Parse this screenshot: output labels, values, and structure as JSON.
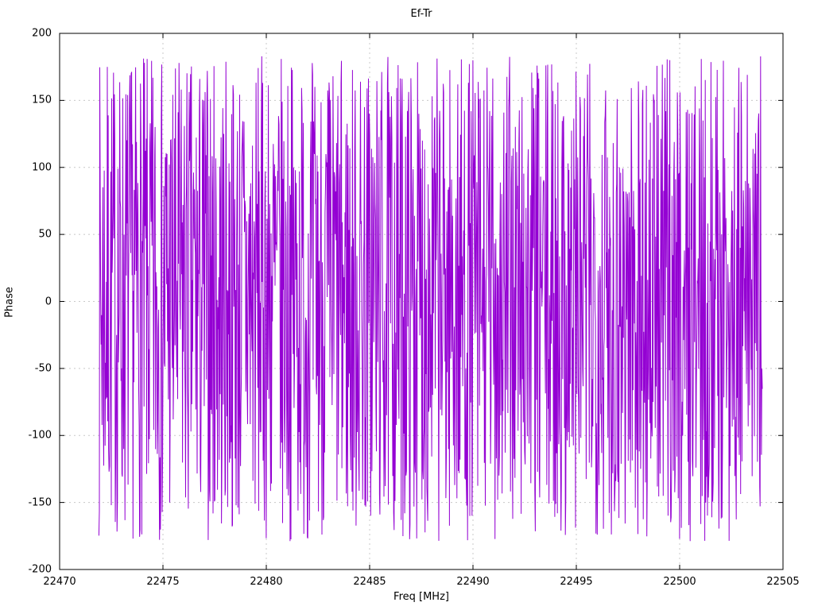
{
  "chart_data": {
    "type": "line",
    "title": "Ef-Tr",
    "xlabel": "Freq [MHz]",
    "ylabel": "Phase",
    "xlim": [
      22470,
      22505
    ],
    "ylim": [
      -200,
      200
    ],
    "x_ticks": [
      22470,
      22475,
      22480,
      22485,
      22490,
      22495,
      22500,
      22505
    ],
    "y_ticks": [
      -200,
      -150,
      -100,
      -50,
      0,
      50,
      100,
      150,
      200
    ],
    "grid": true,
    "legend_position": "none",
    "series": [
      {
        "name": "Ef-Tr",
        "color": "#9400d3",
        "description": "wrapped phase noise, uniformly distributed",
        "x_data_range": [
          22471.9,
          22504.0
        ],
        "y_data_range": [
          -179,
          183
        ],
        "points": 1500,
        "seed": 7
      }
    ],
    "colors": {
      "line": "#9400d3",
      "grid": "#c8c8c8",
      "border": "#000000",
      "background": "#ffffff"
    }
  }
}
